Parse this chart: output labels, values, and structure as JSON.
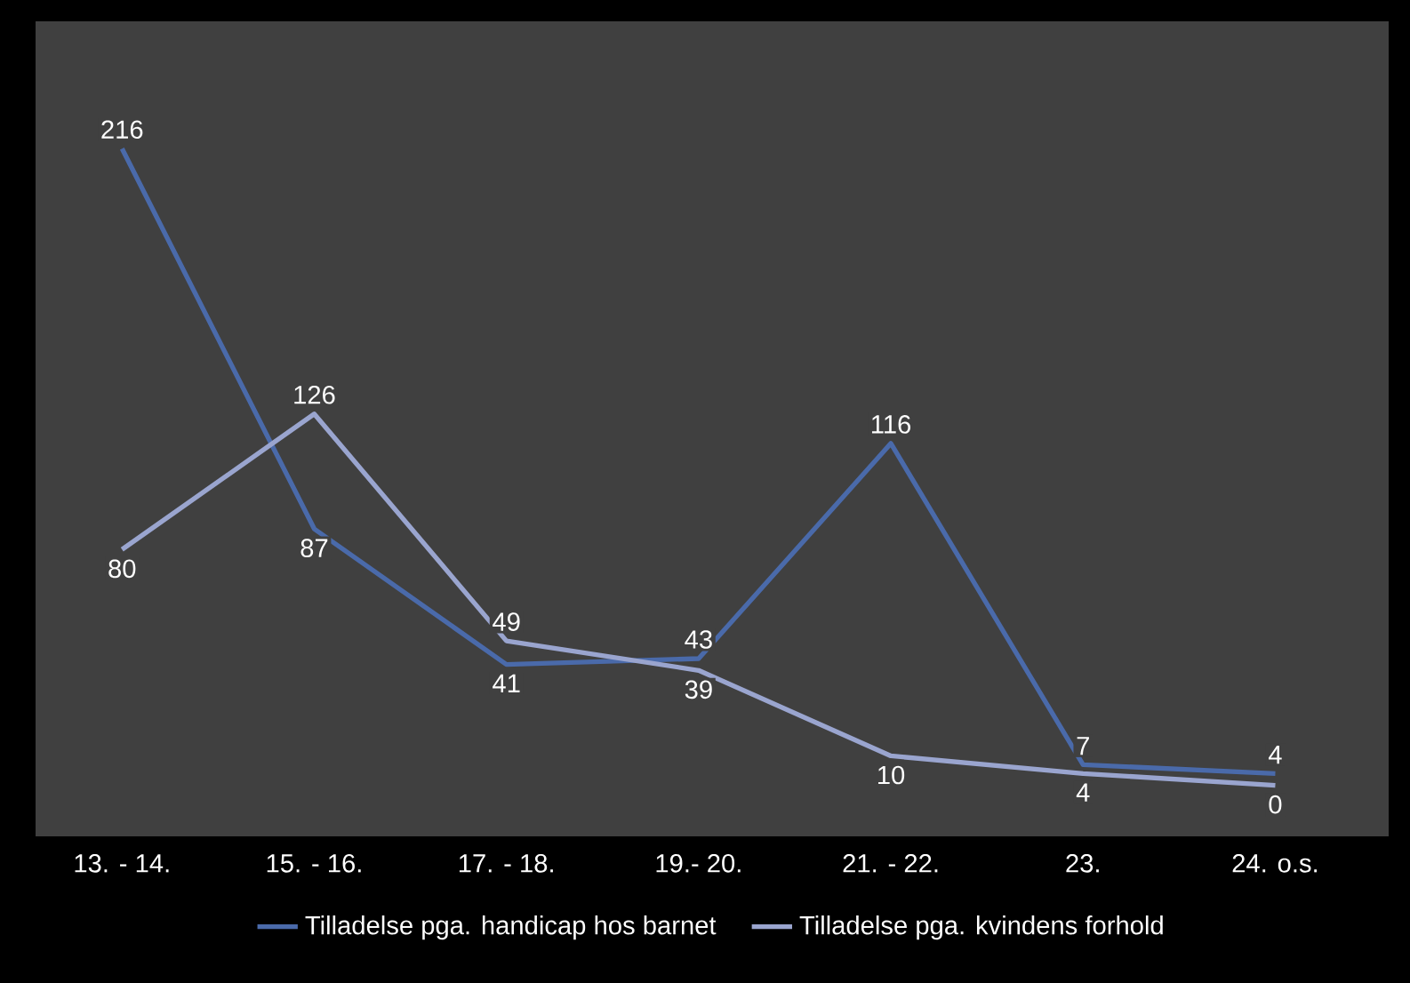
{
  "chart_data": {
    "type": "line",
    "categories": [
      "13. - 14.",
      "15. - 16.",
      "17. - 18.",
      "19.- 20.",
      "21. - 22.",
      "23.",
      "24.  o.s."
    ],
    "series": [
      {
        "name": "Tilladelse pga. handicap hos barnet",
        "color": "#4a6aaa",
        "values": [
          216,
          87,
          41,
          43,
          116,
          7,
          4
        ]
      },
      {
        "name": "Tilladelse pga. kvindens forhold",
        "color": "#9aa5cf",
        "values": [
          80,
          126,
          49,
          39,
          10,
          4,
          0
        ]
      }
    ],
    "data_labels": true,
    "legend": "bottom",
    "grid": false
  }
}
